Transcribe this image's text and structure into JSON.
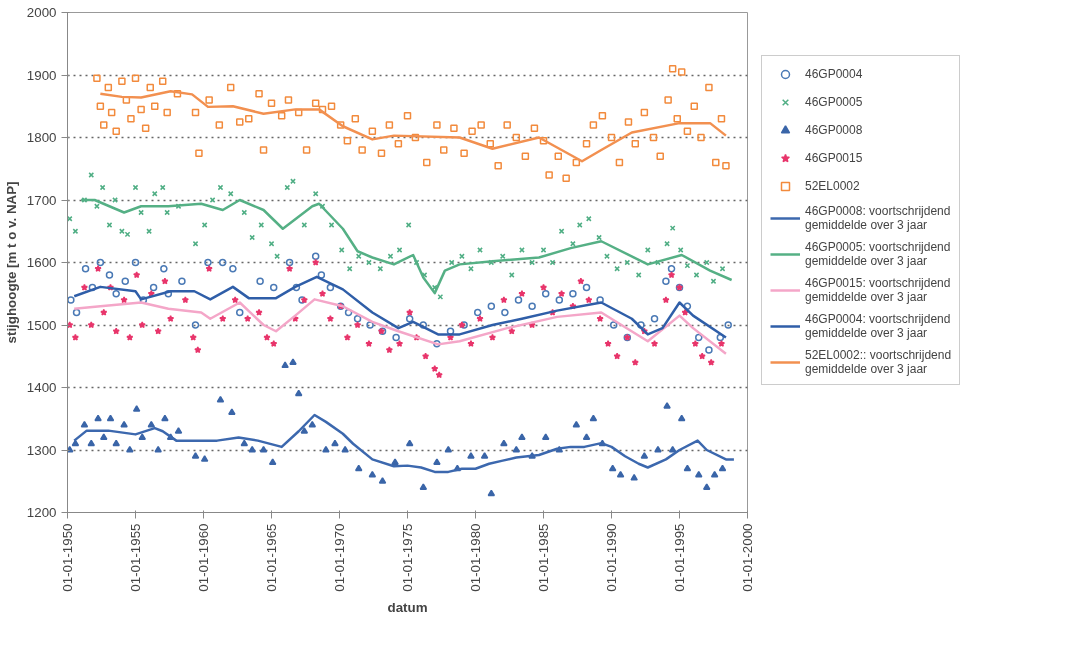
{
  "chart_data": {
    "type": "scatter",
    "xlabel": "datum",
    "ylabel": "stijghoogte [m t o v. NAP]",
    "xlim": [
      "1950-01-01",
      "2000-01-01"
    ],
    "ylim": [
      1200,
      2000
    ],
    "xticks": [
      {
        "value": "1950-01-01",
        "label": "01-01-1950"
      },
      {
        "value": "1955-01-01",
        "label": "01-01-1955"
      },
      {
        "value": "1960-01-01",
        "label": "01-01-1960"
      },
      {
        "value": "1965-01-01",
        "label": "01-01-1965"
      },
      {
        "value": "1970-01-01",
        "label": "01-01-1970"
      },
      {
        "value": "1975-01-01",
        "label": "01-01-1975"
      },
      {
        "value": "1980-01-01",
        "label": "01-01-1980"
      },
      {
        "value": "1985-01-01",
        "label": "01-01-1985"
      },
      {
        "value": "1990-01-01",
        "label": "01-01-1990"
      },
      {
        "value": "1995-01-01",
        "label": "01-01-1995"
      },
      {
        "value": "2000-01-01",
        "label": "01-01-2000"
      }
    ],
    "yticks": [
      1200,
      1300,
      1400,
      1500,
      1600,
      1700,
      1800,
      1900,
      2000
    ],
    "grid": "y",
    "legend": "right",
    "series": [
      {
        "name": "46GP0004",
        "type": "scatter",
        "marker": "circle",
        "color": "#4a79b5",
        "x": [
          "1950-04",
          "1950-09",
          "1951-05",
          "1951-11",
          "1952-06",
          "1953-02",
          "1953-08",
          "1954-04",
          "1955-01",
          "1955-08",
          "1956-05",
          "1957-02",
          "1957-06",
          "1958-06",
          "1959-06",
          "1960-05",
          "1961-06",
          "1962-03",
          "1962-09",
          "1964-03",
          "1965-03",
          "1966-05",
          "1966-11",
          "1967-04",
          "1968-04",
          "1968-09",
          "1969-05",
          "1970-02",
          "1970-09",
          "1971-05",
          "1972-04",
          "1973-03",
          "1974-03",
          "1975-03",
          "1976-03",
          "1977-03",
          "1978-03",
          "1979-03",
          "1980-03",
          "1981-03",
          "1982-03",
          "1983-03",
          "1984-03",
          "1985-03",
          "1986-03",
          "1987-03",
          "1988-03",
          "1989-03",
          "1990-03",
          "1991-03",
          "1992-03",
          "1993-03",
          "1994-01",
          "1994-06",
          "1995-01",
          "1995-08",
          "1996-06",
          "1997-03",
          "1998-01",
          "1998-08"
        ],
        "values": [
          1540,
          1520,
          1590,
          1560,
          1600,
          1580,
          1550,
          1570,
          1600,
          1540,
          1560,
          1590,
          1550,
          1570,
          1500,
          1600,
          1600,
          1590,
          1520,
          1570,
          1560,
          1600,
          1560,
          1540,
          1610,
          1580,
          1560,
          1530,
          1520,
          1510,
          1500,
          1490,
          1480,
          1510,
          1500,
          1470,
          1490,
          1500,
          1520,
          1530,
          1520,
          1540,
          1530,
          1550,
          1540,
          1550,
          1560,
          1540,
          1500,
          1480,
          1500,
          1510,
          1570,
          1590,
          1560,
          1530,
          1480,
          1460,
          1480,
          1500
        ]
      },
      {
        "name": "46GP0005",
        "type": "scatter",
        "marker": "cross",
        "color": "#4fae84",
        "x": [
          "1950-03",
          "1950-08",
          "1951-04",
          "1951-10",
          "1952-03",
          "1952-08",
          "1953-02",
          "1953-07",
          "1954-01",
          "1954-06",
          "1955-01",
          "1955-06",
          "1956-01",
          "1956-06",
          "1957-01",
          "1957-05",
          "1958-03",
          "1959-06",
          "1960-02",
          "1960-09",
          "1961-04",
          "1962-01",
          "1963-01",
          "1963-08",
          "1964-04",
          "1965-01",
          "1965-06",
          "1966-03",
          "1966-08",
          "1967-06",
          "1968-04",
          "1968-10",
          "1969-06",
          "1970-03",
          "1970-10",
          "1971-06",
          "1972-03",
          "1973-01",
          "1973-10",
          "1974-06",
          "1975-02",
          "1975-09",
          "1976-04",
          "1977-01",
          "1977-06",
          "1978-04",
          "1979-01",
          "1979-09",
          "1980-05",
          "1981-03",
          "1982-01",
          "1982-09",
          "1983-06",
          "1984-03",
          "1985-01",
          "1985-09",
          "1986-05",
          "1987-03",
          "1987-09",
          "1988-05",
          "1989-02",
          "1989-09",
          "1990-06",
          "1991-03",
          "1992-01",
          "1992-09",
          "1993-06",
          "1994-02",
          "1994-07",
          "1995-02",
          "1995-08",
          "1996-04",
          "1997-01",
          "1997-07",
          "1998-03"
        ],
        "values": [
          1670,
          1650,
          1700,
          1740,
          1690,
          1720,
          1660,
          1700,
          1650,
          1645,
          1720,
          1680,
          1650,
          1710,
          1720,
          1680,
          1690,
          1630,
          1660,
          1700,
          1720,
          1710,
          1680,
          1640,
          1660,
          1630,
          1610,
          1720,
          1730,
          1660,
          1710,
          1690,
          1660,
          1620,
          1590,
          1610,
          1600,
          1590,
          1610,
          1620,
          1660,
          1600,
          1580,
          1560,
          1545,
          1600,
          1610,
          1590,
          1620,
          1600,
          1610,
          1580,
          1620,
          1600,
          1620,
          1600,
          1650,
          1630,
          1660,
          1670,
          1640,
          1610,
          1590,
          1600,
          1580,
          1620,
          1600,
          1630,
          1655,
          1620,
          1595,
          1580,
          1600,
          1570,
          1590
        ]
      },
      {
        "name": "46GP0008",
        "type": "scatter",
        "marker": "triangle",
        "color": "#3a65a8",
        "x": [
          "1950-03",
          "1950-08",
          "1951-04",
          "1951-10",
          "1952-04",
          "1952-09",
          "1953-03",
          "1953-08",
          "1954-03",
          "1954-08",
          "1955-02",
          "1955-07",
          "1956-03",
          "1956-09",
          "1957-03",
          "1957-08",
          "1958-03",
          "1959-06",
          "1960-02",
          "1961-04",
          "1962-02",
          "1963-01",
          "1963-08",
          "1964-06",
          "1965-02",
          "1966-01",
          "1966-08",
          "1967-01",
          "1967-06",
          "1968-01",
          "1969-01",
          "1969-09",
          "1970-06",
          "1971-06",
          "1972-06",
          "1973-03",
          "1974-02",
          "1975-03",
          "1976-03",
          "1977-03",
          "1978-01",
          "1978-09",
          "1979-09",
          "1980-09",
          "1981-03",
          "1982-02",
          "1983-01",
          "1983-06",
          "1984-03",
          "1985-03",
          "1986-03",
          "1987-06",
          "1988-03",
          "1988-09",
          "1989-05",
          "1990-02",
          "1990-09",
          "1991-09",
          "1992-06",
          "1993-06",
          "1994-02",
          "1994-07",
          "1995-03",
          "1995-08",
          "1996-06",
          "1997-01",
          "1997-08",
          "1998-03"
        ],
        "values": [
          1300,
          1310,
          1340,
          1310,
          1350,
          1320,
          1350,
          1310,
          1340,
          1300,
          1365,
          1320,
          1340,
          1300,
          1350,
          1320,
          1330,
          1290,
          1285,
          1380,
          1360,
          1310,
          1300,
          1300,
          1280,
          1435,
          1440,
          1390,
          1330,
          1340,
          1300,
          1310,
          1300,
          1270,
          1260,
          1250,
          1280,
          1310,
          1240,
          1280,
          1300,
          1270,
          1290,
          1290,
          1230,
          1310,
          1300,
          1320,
          1290,
          1320,
          1300,
          1340,
          1320,
          1350,
          1310,
          1270,
          1260,
          1255,
          1290,
          1300,
          1370,
          1300,
          1350,
          1270,
          1260,
          1240,
          1260,
          1270
        ]
      },
      {
        "name": "46GP0015",
        "type": "scatter",
        "marker": "star",
        "color": "#e8356b",
        "x": [
          "1950-03",
          "1950-08",
          "1951-04",
          "1951-10",
          "1952-04",
          "1952-09",
          "1953-03",
          "1953-08",
          "1954-03",
          "1954-08",
          "1955-02",
          "1955-07",
          "1956-03",
          "1956-09",
          "1957-03",
          "1957-08",
          "1958-09",
          "1959-04",
          "1959-08",
          "1960-06",
          "1961-06",
          "1962-05",
          "1963-04",
          "1964-02",
          "1964-09",
          "1965-03",
          "1966-05",
          "1966-10",
          "1967-06",
          "1968-04",
          "1968-10",
          "1969-05",
          "1970-02",
          "1970-08",
          "1971-05",
          "1972-03",
          "1973-02",
          "1973-09",
          "1974-06",
          "1975-03",
          "1975-09",
          "1976-05",
          "1977-01",
          "1977-05",
          "1978-03",
          "1979-01",
          "1979-09",
          "1980-05",
          "1981-04",
          "1982-02",
          "1982-09",
          "1983-06",
          "1984-03",
          "1985-01",
          "1985-09",
          "1986-05",
          "1987-03",
          "1987-10",
          "1988-05",
          "1989-03",
          "1989-10",
          "1990-06",
          "1991-03",
          "1991-10",
          "1992-06",
          "1993-03",
          "1994-01",
          "1994-06",
          "1995-01",
          "1995-06",
          "1996-03",
          "1996-09",
          "1997-05",
          "1998-02"
        ],
        "values": [
          1500,
          1480,
          1560,
          1500,
          1590,
          1520,
          1560,
          1490,
          1540,
          1480,
          1580,
          1500,
          1550,
          1490,
          1570,
          1510,
          1540,
          1480,
          1460,
          1590,
          1510,
          1540,
          1510,
          1520,
          1480,
          1470,
          1590,
          1510,
          1540,
          1600,
          1550,
          1510,
          1530,
          1480,
          1500,
          1470,
          1490,
          1460,
          1470,
          1520,
          1480,
          1450,
          1430,
          1420,
          1480,
          1500,
          1470,
          1510,
          1480,
          1540,
          1490,
          1550,
          1500,
          1560,
          1520,
          1550,
          1530,
          1570,
          1540,
          1510,
          1470,
          1450,
          1480,
          1440,
          1490,
          1470,
          1540,
          1580,
          1560,
          1520,
          1470,
          1450,
          1440,
          1470
        ]
      },
      {
        "name": "52EL0002",
        "type": "scatter",
        "marker": "square",
        "color": "#f28a3c",
        "x": [
          "1952-03",
          "1952-06",
          "1952-09",
          "1953-01",
          "1953-04",
          "1953-08",
          "1954-01",
          "1954-05",
          "1954-09",
          "1955-01",
          "1955-06",
          "1955-10",
          "1956-02",
          "1956-06",
          "1957-01",
          "1957-05",
          "1958-02",
          "1959-06",
          "1959-09",
          "1960-06",
          "1961-03",
          "1962-01",
          "1962-09",
          "1963-05",
          "1964-02",
          "1964-06",
          "1965-01",
          "1965-10",
          "1966-04",
          "1967-01",
          "1967-08",
          "1968-04",
          "1968-10",
          "1969-06",
          "1970-02",
          "1970-08",
          "1971-03",
          "1971-09",
          "1972-06",
          "1973-02",
          "1973-09",
          "1974-05",
          "1975-01",
          "1975-08",
          "1976-06",
          "1977-03",
          "1977-09",
          "1978-06",
          "1979-03",
          "1979-10",
          "1980-06",
          "1981-02",
          "1981-09",
          "1982-05",
          "1983-01",
          "1983-09",
          "1984-05",
          "1985-01",
          "1985-06",
          "1986-02",
          "1986-09",
          "1987-06",
          "1988-03",
          "1988-09",
          "1989-05",
          "1990-01",
          "1990-08",
          "1991-04",
          "1991-10",
          "1992-06",
          "1993-02",
          "1993-08",
          "1994-03",
          "1994-07",
          "1994-11",
          "1995-03",
          "1995-08",
          "1996-02",
          "1996-08",
          "1997-03",
          "1997-09",
          "1998-02",
          "1998-06"
        ],
        "values": [
          1895,
          1850,
          1820,
          1880,
          1840,
          1810,
          1890,
          1860,
          1830,
          1895,
          1845,
          1815,
          1880,
          1850,
          1890,
          1840,
          1870,
          1840,
          1775,
          1860,
          1820,
          1880,
          1825,
          1830,
          1870,
          1780,
          1855,
          1835,
          1860,
          1840,
          1780,
          1855,
          1845,
          1850,
          1820,
          1795,
          1830,
          1780,
          1810,
          1775,
          1820,
          1790,
          1835,
          1800,
          1760,
          1820,
          1780,
          1815,
          1775,
          1810,
          1820,
          1790,
          1755,
          1820,
          1800,
          1770,
          1815,
          1795,
          1740,
          1770,
          1735,
          1760,
          1790,
          1820,
          1835,
          1800,
          1760,
          1825,
          1790,
          1840,
          1800,
          1770,
          1860,
          1910,
          1830,
          1905,
          1810,
          1850,
          1800,
          1880,
          1760,
          1830,
          1755
        ]
      },
      {
        "name": "46GP0008: voortschrijdend gemiddelde over 3 jaar",
        "type": "line",
        "color": "#3c68ae",
        "x": [
          "1950-07",
          "1951-06",
          "1953-01",
          "1955-01",
          "1956-06",
          "1957-01",
          "1958-01",
          "1960-01",
          "1961-01",
          "1962-08",
          "1964-01",
          "1965-10",
          "1967-01",
          "1968-03",
          "1969-01",
          "1970-04",
          "1971-01",
          "1972-06",
          "1974-01",
          "1975-01",
          "1976-01",
          "1977-01",
          "1978-01",
          "1979-01",
          "1980-01",
          "1981-01",
          "1982-01",
          "1983-01",
          "1984-09",
          "1986-01",
          "1987-01",
          "1988-01",
          "1989-04",
          "1990-01",
          "1991-01",
          "1992-01",
          "1992-09",
          "1994-01",
          "1995-01",
          "1996-05",
          "1997-01",
          "1998-06",
          "1999-01"
        ],
        "values": [
          1315,
          1331,
          1331,
          1325,
          1335,
          1330,
          1315,
          1315,
          1315,
          1320,
          1315,
          1305,
          1330,
          1356,
          1345,
          1326,
          1310,
          1285,
          1274,
          1275,
          1272,
          1265,
          1265,
          1270,
          1270,
          1278,
          1283,
          1288,
          1292,
          1302,
          1305,
          1305,
          1311,
          1305,
          1290,
          1278,
          1272,
          1285,
          1300,
          1315,
          1300,
          1285,
          1285
        ]
      },
      {
        "name": "46GP0005: voortschrijdend gemiddelde over 3 jaar",
        "type": "line",
        "color": "#55b085",
        "x": [
          "1951-01",
          "1952-01",
          "1954-03",
          "1955-06",
          "1957-06",
          "1959-11",
          "1961-06",
          "1962-09",
          "1964-06",
          "1965-11",
          "1968-01",
          "1968-07",
          "1970-04",
          "1971-05",
          "1972-06",
          "1974-01",
          "1975-06",
          "1976-03",
          "1977-01",
          "1977-10",
          "1978-11",
          "1981-04",
          "1984-09",
          "1987-01",
          "1989-04",
          "1992-09",
          "1995-03",
          "1997-04",
          "1998-11"
        ],
        "values": [
          1700,
          1700,
          1680,
          1690,
          1690,
          1694,
          1684,
          1700,
          1684,
          1654,
          1690,
          1694,
          1654,
          1618,
          1608,
          1597,
          1612,
          1576,
          1551,
          1587,
          1597,
          1602,
          1608,
          1623,
          1634,
          1597,
          1612,
          1587,
          1572
        ]
      },
      {
        "name": "46GP0015: voortschrijdend gemiddelde over 3 jaar",
        "type": "line",
        "color": "#f4a6c8",
        "x": [
          "1950-07",
          "1952-06",
          "1955-06",
          "1957-06",
          "1959-11",
          "1960-07",
          "1962-09",
          "1964-06",
          "1965-05",
          "1966-10",
          "1968-03",
          "1970-04",
          "1972-06",
          "1974-05",
          "1977-04",
          "1978-11",
          "1982-05",
          "1986-01",
          "1989-04",
          "1992-09",
          "1995-01",
          "1996-01",
          "1998-06"
        ],
        "values": [
          1526,
          1530,
          1536,
          1526,
          1520,
          1510,
          1536,
          1500,
          1490,
          1515,
          1541,
          1530,
          1505,
          1490,
          1469,
          1474,
          1495,
          1513,
          1520,
          1474,
          1515,
          1495,
          1454
        ]
      },
      {
        "name": "46GP0004: voortschrijdend gemiddelde over 3 jaar",
        "type": "line",
        "color": "#2f5ea8",
        "x": [
          "1950-07",
          "1952-06",
          "1955-01",
          "1955-06",
          "1957-08",
          "1959-05",
          "1960-07",
          "1962-03",
          "1963-05",
          "1965-05",
          "1966-10",
          "1968-05",
          "1970-04",
          "1972-06",
          "1974-05",
          "1975-06",
          "1977-04",
          "1978-11",
          "1981-04",
          "1983-06",
          "1986-01",
          "1989-04",
          "1991-07",
          "1992-09",
          "1993-10",
          "1995-01",
          "1996-01",
          "1998-06"
        ],
        "values": [
          1546,
          1561,
          1554,
          1541,
          1554,
          1554,
          1541,
          1561,
          1543,
          1543,
          1561,
          1577,
          1557,
          1520,
          1495,
          1505,
          1485,
          1485,
          1500,
          1510,
          1523,
          1536,
          1510,
          1485,
          1495,
          1536,
          1515,
          1480
        ]
      },
      {
        "name": "52EL0002:: voortschrijdend gemiddelde over 3 jaar",
        "type": "line",
        "color": "#f29050",
        "x": [
          "1952-06",
          "1954-01",
          "1955-06",
          "1957-08",
          "1959-03",
          "1960-05",
          "1962-03",
          "1964-06",
          "1966-10",
          "1968-07",
          "1970-04",
          "1972-06",
          "1974-01",
          "1978-11",
          "1981-04",
          "1984-09",
          "1987-11",
          "1989-04",
          "1991-07",
          "1995-01",
          "1997-04",
          "1998-06"
        ],
        "values": [
          1870,
          1865,
          1864,
          1874,
          1869,
          1849,
          1850,
          1838,
          1845,
          1845,
          1818,
          1797,
          1803,
          1800,
          1782,
          1800,
          1762,
          1780,
          1808,
          1823,
          1823,
          1803
        ]
      }
    ]
  }
}
